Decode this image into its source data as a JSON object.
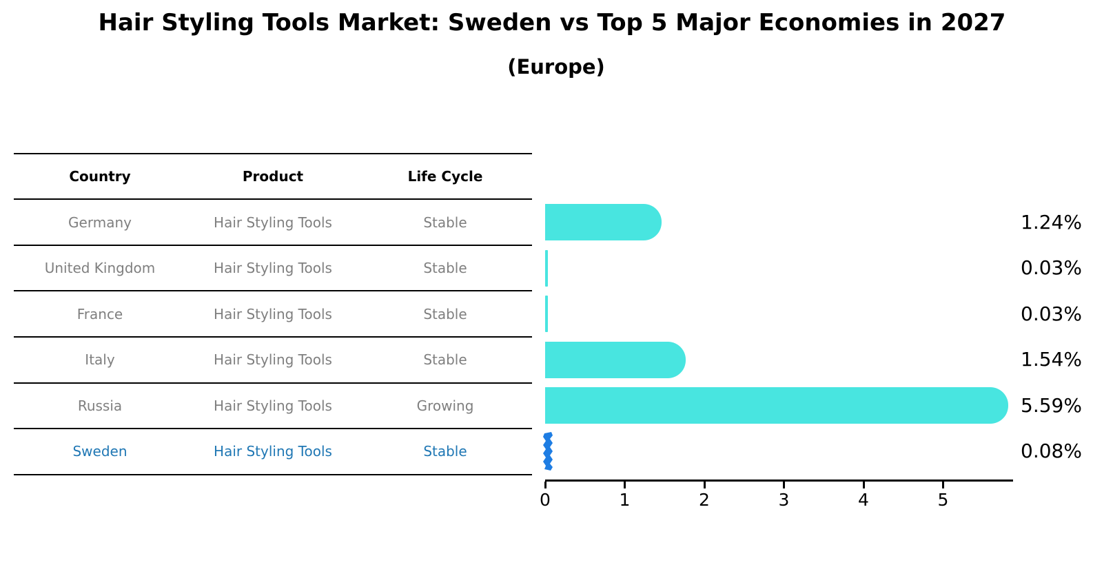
{
  "title": "Hair Styling Tools Market: Sweden vs Top 5 Major Economies in 2027",
  "subtitle": "(Europe)",
  "table": {
    "headers": [
      "Country",
      "Product",
      "Life Cycle"
    ],
    "rows": [
      {
        "country": "Germany",
        "product": "Hair Styling Tools",
        "life_cycle": "Stable",
        "highlighted": false
      },
      {
        "country": "United Kingdom",
        "product": "Hair Styling Tools",
        "life_cycle": "Stable",
        "highlighted": false
      },
      {
        "country": "France",
        "product": "Hair Styling Tools",
        "life_cycle": "Stable",
        "highlighted": false
      },
      {
        "country": "Italy",
        "product": "Hair Styling Tools",
        "life_cycle": "Stable",
        "highlighted": false
      },
      {
        "country": "Russia",
        "product": "Hair Styling Tools",
        "life_cycle": "Growing",
        "highlighted": false
      },
      {
        "country": "Sweden",
        "product": "Hair Styling Tools",
        "life_cycle": "Stable",
        "highlighted": true
      }
    ]
  },
  "chart_data": {
    "type": "bar",
    "orientation": "horizontal",
    "title": "Hair Styling Tools Market: Sweden vs Top 5 Major Economies in 2027",
    "subtitle": "(Europe)",
    "categories": [
      "Germany",
      "United Kingdom",
      "France",
      "Italy",
      "Russia",
      "Sweden"
    ],
    "values": [
      1.24,
      0.03,
      0.03,
      1.54,
      5.59,
      0.08
    ],
    "value_labels": [
      "1.24%",
      "0.03%",
      "0.03%",
      "1.54%",
      "5.59%",
      "0.08%"
    ],
    "x_ticks": [
      "0",
      "1",
      "2",
      "3",
      "4",
      "5"
    ],
    "xlim": [
      0,
      5.9
    ],
    "grid": false,
    "highlight_index": 5
  },
  "colors": {
    "bar": "#48E5E0",
    "highlight_bar": "#1E7DE3",
    "row_text": "#7F7F7F",
    "highlight_text": "#1F77B4",
    "heading_text": "#000000",
    "line": "#000000"
  }
}
